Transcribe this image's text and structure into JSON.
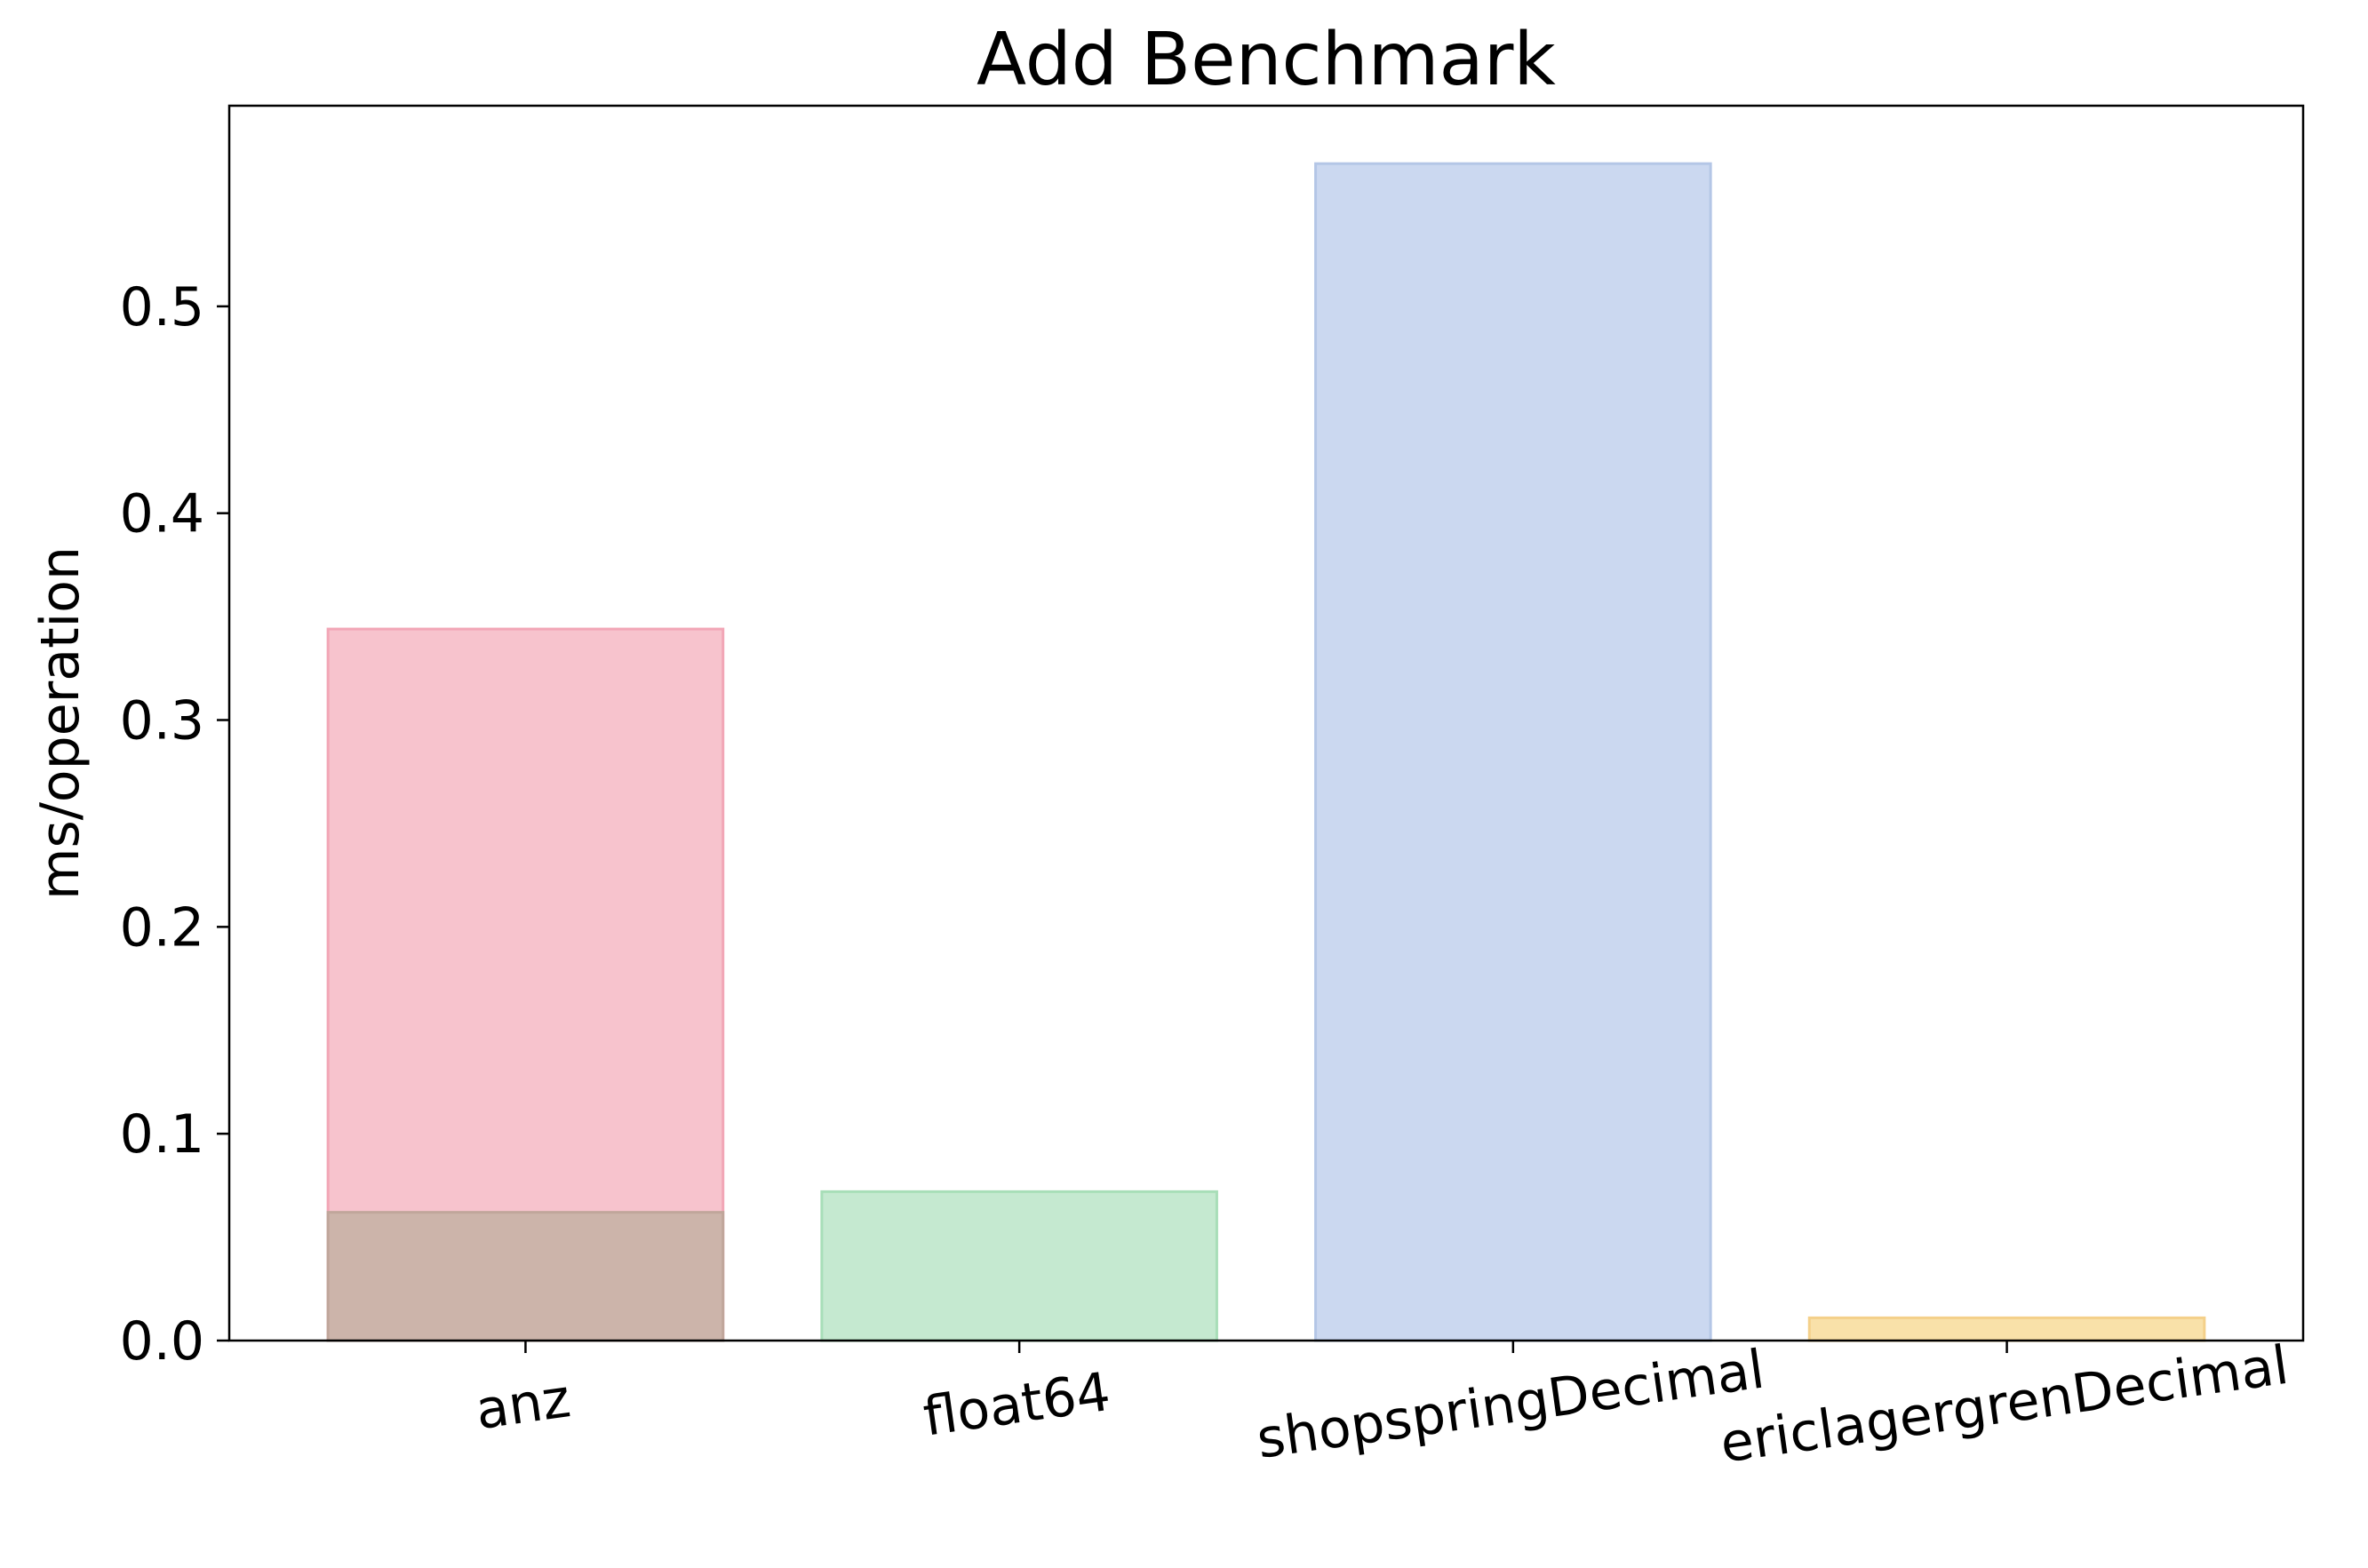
{
  "chart_data": {
    "type": "bar",
    "title": "Add Benchmark",
    "xlabel": "",
    "ylabel": "ms/operation",
    "ylim": [
      0,
      0.597
    ],
    "yticks": [
      0.0,
      0.1,
      0.2,
      0.3,
      0.4,
      0.5
    ],
    "ytick_labels": [
      "0.0",
      "0.1",
      "0.2",
      "0.3",
      "0.4",
      "0.5"
    ],
    "categories": [
      "anz",
      "float64",
      "shopspringDecimal",
      "ericlagergrenDecimal"
    ],
    "xtick_rotation_deg": -8,
    "grid": false,
    "legend": "none",
    "series": [
      {
        "values": [
          0.344,
          0.072,
          0.569,
          0.011
        ],
        "colors": [
          "#f7c3cd",
          "#c5e9d0",
          "#cbd8f0",
          "#f9e1a9"
        ],
        "edge_colors": [
          "#f2a6b6",
          "#a8deb8",
          "#b4c6e6",
          "#f4d08a"
        ]
      },
      {
        "values": [
          0.062,
          null,
          null,
          null
        ],
        "colors": [
          "#ccb4aa",
          null,
          null,
          null
        ],
        "edge_colors": [
          "#c0a69b",
          null,
          null,
          null
        ]
      }
    ]
  }
}
